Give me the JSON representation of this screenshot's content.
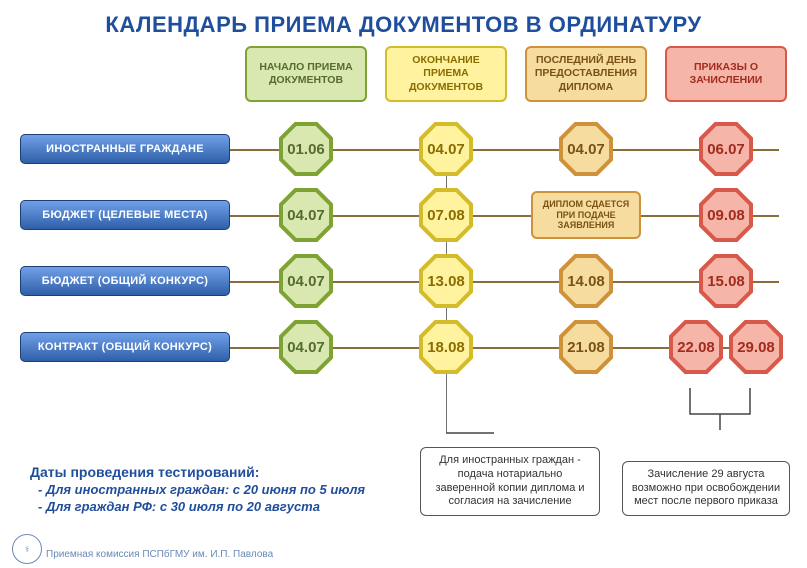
{
  "title": "КАЛЕНДАРЬ ПРИЕМА ДОКУМЕНТОВ В ОРДИНАТУРУ",
  "columns": [
    {
      "label": "НАЧАЛО ПРИЕМА ДОКУМЕНТОВ",
      "bg": "#d8e8b0",
      "border": "#7fa332",
      "text": "#556b2f"
    },
    {
      "label": "ОКОНЧАНИЕ ПРИЕМА ДОКУМЕНТОВ",
      "bg": "#fff3a0",
      "border": "#d4bb2a",
      "text": "#8a6d00"
    },
    {
      "label": "ПОСЛЕДНИЙ ДЕНЬ ПРЕДОСТАВЛЕНИЯ ДИПЛОМА",
      "bg": "#f7dca0",
      "border": "#cf923a",
      "text": "#7a5215"
    },
    {
      "label": "ПРИКАЗЫ О ЗАЧИСЛЕНИИ",
      "bg": "#f5b5a8",
      "border": "#d8584a",
      "text": "#a12c1e"
    }
  ],
  "rows": [
    {
      "label": "ИНОСТРАННЫЕ ГРАЖДАНЕ",
      "cells": [
        {
          "v": "01.06"
        },
        {
          "v": "04.07"
        },
        {
          "v": "04.07"
        },
        {
          "v": "06.07"
        }
      ]
    },
    {
      "label": "БЮДЖЕТ (ЦЕЛЕВЫЕ МЕСТА)",
      "cells": [
        {
          "v": "04.07"
        },
        {
          "v": "07.08"
        },
        {
          "t": "ДИПЛОМ СДАЕТСЯ ПРИ ПОДАЧЕ ЗАЯВЛЕНИЯ"
        },
        {
          "v": "09.08"
        }
      ]
    },
    {
      "label": "БЮДЖЕТ (ОБЩИЙ КОНКУРС)",
      "cells": [
        {
          "v": "04.07"
        },
        {
          "v": "13.08"
        },
        {
          "v": "14.08"
        },
        {
          "v": "15.08"
        }
      ]
    },
    {
      "label": "КОНТРАКТ (ОБЩИЙ КОНКУРС)",
      "cells": [
        {
          "v": "04.07"
        },
        {
          "v": "18.08"
        },
        {
          "v": "21.08"
        },
        {
          "v": "22.08",
          "v2": "29.08"
        }
      ]
    }
  ],
  "footer": {
    "heading": "Даты проведения тестирований:",
    "line1": "- Для иностранных граждан: с 20 июня по 5 июля",
    "line2": "- Для граждан РФ: с 30 июля по 20 августа"
  },
  "note1": "Для иностранных граждан - подача нотариально заверенной копии диплома и согласия на зачисление",
  "note2": "Зачисление 29 августа возможно при освобождении мест после первого приказа",
  "credit": "Приемная комиссия ПСПбГМУ им. И.П. Павлова",
  "palette": {
    "rowline": "#8a6d3b",
    "title_color": "#1f4e9c"
  }
}
